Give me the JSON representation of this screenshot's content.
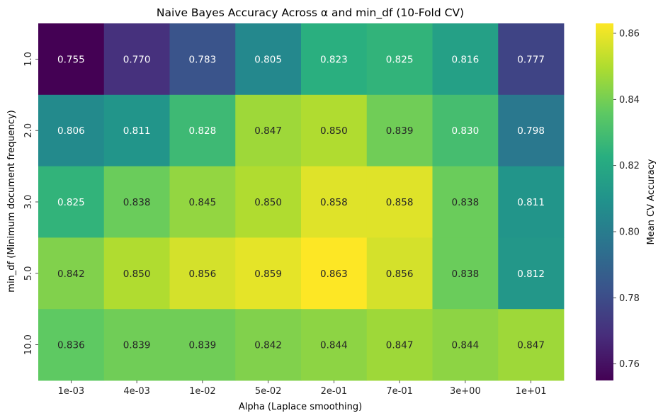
{
  "chart_data": {
    "type": "heatmap",
    "title": "Naive Bayes Accuracy Across α and min_df (10-Fold CV)",
    "xlabel": "Alpha (Laplace smoothing)",
    "ylabel": "min_df (Minimum document frequency)",
    "x_categories": [
      "1e-03",
      "4e-03",
      "1e-02",
      "5e-02",
      "2e-01",
      "7e-01",
      "3e+00",
      "1e+01"
    ],
    "y_categories": [
      "1.0",
      "2.0",
      "3.0",
      "5.0",
      "10.0"
    ],
    "values": [
      [
        0.755,
        0.77,
        0.783,
        0.805,
        0.823,
        0.825,
        0.816,
        0.777
      ],
      [
        0.806,
        0.811,
        0.828,
        0.847,
        0.85,
        0.839,
        0.83,
        0.798
      ],
      [
        0.825,
        0.838,
        0.845,
        0.85,
        0.858,
        0.858,
        0.838,
        0.811
      ],
      [
        0.842,
        0.85,
        0.856,
        0.859,
        0.863,
        0.856,
        0.838,
        0.812
      ],
      [
        0.836,
        0.839,
        0.839,
        0.842,
        0.844,
        0.847,
        0.844,
        0.847
      ]
    ],
    "value_format_decimals": 3,
    "colormap": "viridis",
    "colorbar": {
      "label": "Mean CV Accuracy",
      "vmin": 0.755,
      "vmax": 0.863,
      "ticks": [
        0.76,
        0.78,
        0.8,
        0.82,
        0.84,
        0.86
      ],
      "tick_labels": [
        "0.76",
        "0.78",
        "0.80",
        "0.82",
        "0.84",
        "0.86"
      ]
    },
    "grid": false,
    "legend": "none"
  }
}
